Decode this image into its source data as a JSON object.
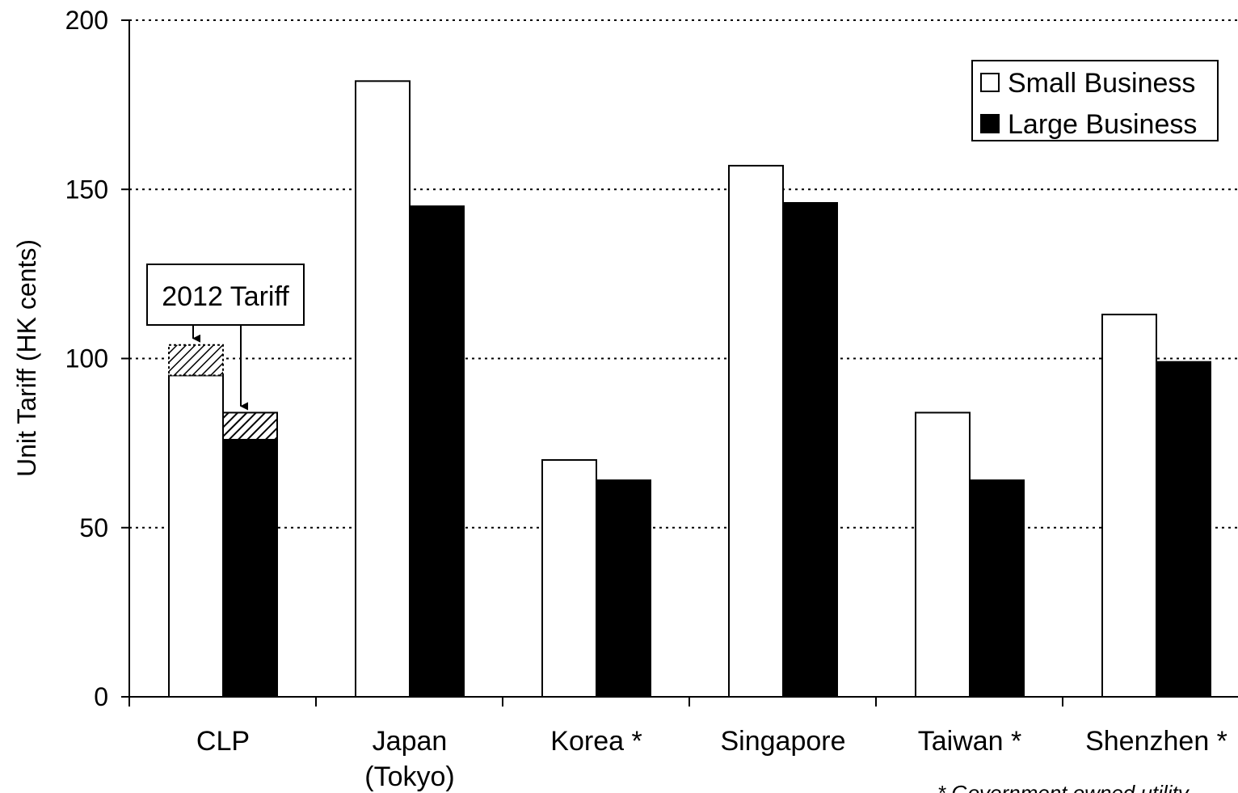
{
  "chart_data": {
    "type": "bar",
    "ylabel": "Unit Tariff (HK cents)",
    "xlabel": "",
    "ylim": [
      0,
      200
    ],
    "yticks": [
      0,
      50,
      100,
      150,
      200
    ],
    "grid": true,
    "legend_position": "top-right",
    "categories": [
      [
        "CLP"
      ],
      [
        "Japan",
        "(Tokyo)"
      ],
      [
        "Korea *"
      ],
      [
        "Singapore"
      ],
      [
        "Taiwan *"
      ],
      [
        "Shenzhen *"
      ]
    ],
    "series": [
      {
        "name": "Small Business",
        "color": "#ffffff",
        "values": [
          95,
          182,
          70,
          157,
          84,
          113
        ]
      },
      {
        "name": "Large Business",
        "color": "#000000",
        "values": [
          76,
          145,
          64,
          146,
          64,
          99
        ]
      }
    ],
    "tariff_2012": {
      "label": "2012 Tariff",
      "category_index": 0,
      "values": [
        104,
        84
      ]
    },
    "footnote": "* Government owned utility"
  }
}
